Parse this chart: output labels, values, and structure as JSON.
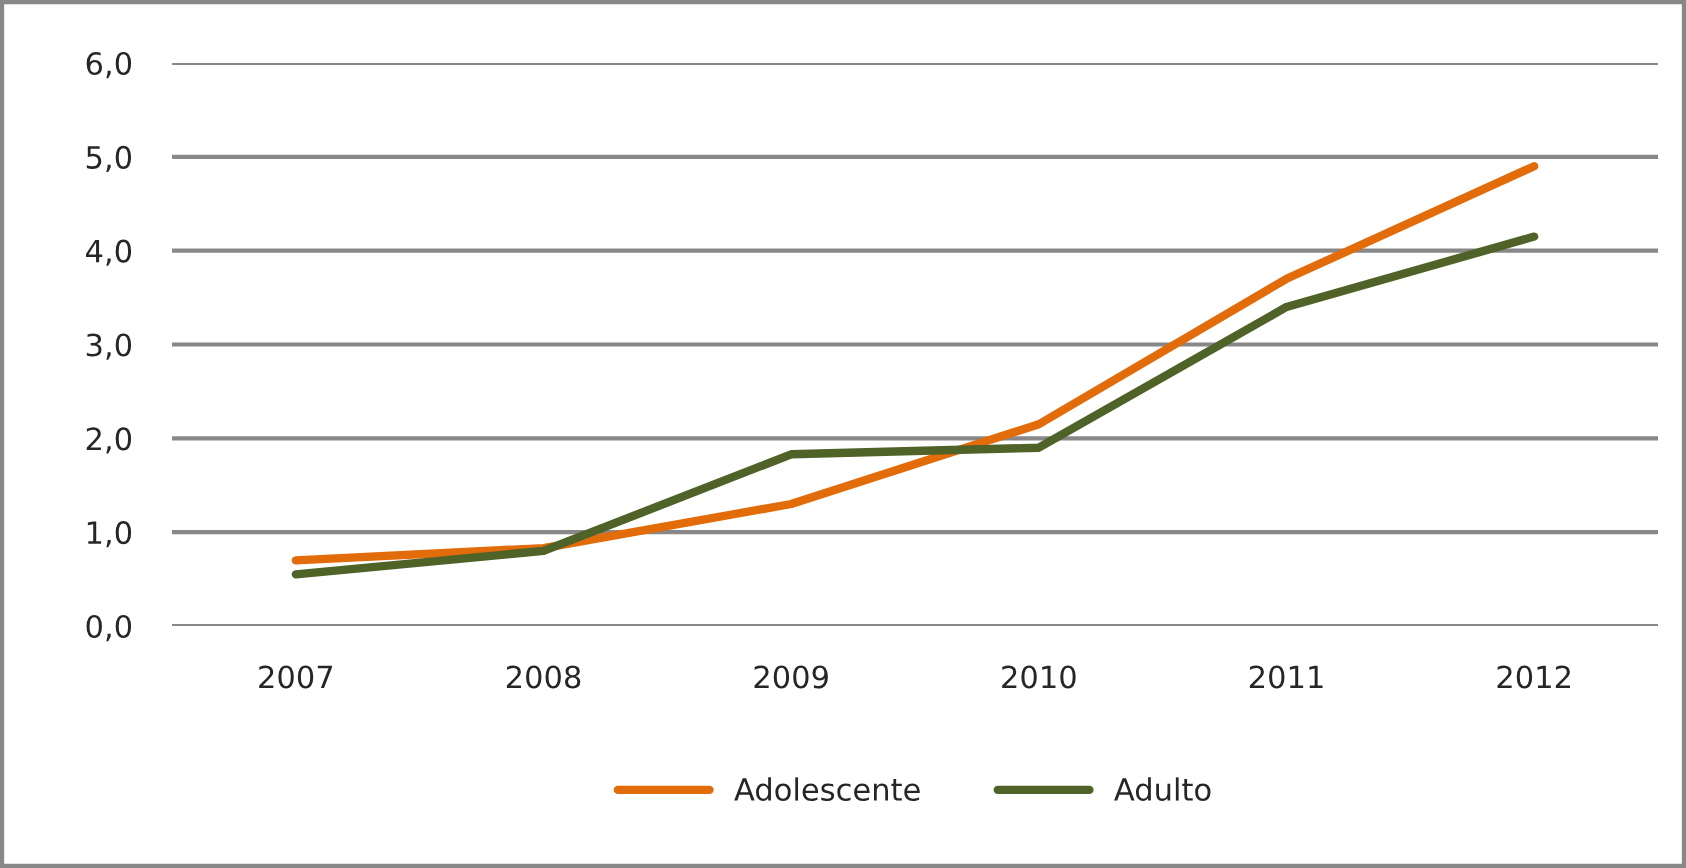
{
  "chart_data": {
    "type": "line",
    "categories": [
      "2007",
      "2008",
      "2009",
      "2010",
      "2011",
      "2012"
    ],
    "series": [
      {
        "name": "Adolescente",
        "color": "#e36c0a",
        "values": [
          0.7,
          0.83,
          1.3,
          2.15,
          3.7,
          4.9
        ]
      },
      {
        "name": "Adulto",
        "color": "#4f6228",
        "values": [
          0.55,
          0.8,
          1.83,
          1.9,
          3.4,
          4.15
        ]
      }
    ],
    "ylim": [
      0,
      6
    ],
    "yticks": [
      {
        "value": 0,
        "label": "0,0"
      },
      {
        "value": 1,
        "label": "1,0"
      },
      {
        "value": 2,
        "label": "2,0"
      },
      {
        "value": 3,
        "label": "3,0"
      },
      {
        "value": 4,
        "label": "4,0"
      },
      {
        "value": 5,
        "label": "5,0"
      },
      {
        "value": 6,
        "label": "6,0"
      }
    ],
    "grid": "y",
    "legend": "bottom",
    "marker": "none",
    "line_style": "solid"
  }
}
